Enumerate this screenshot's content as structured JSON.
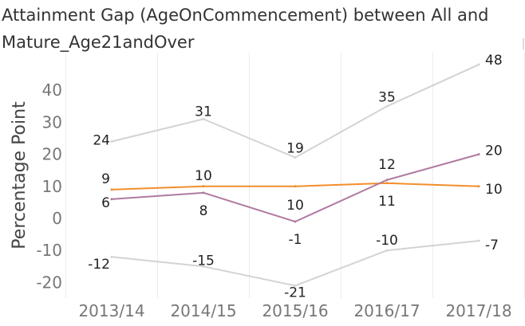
{
  "chart_data": {
    "type": "line",
    "title": "Attainment Gap (AgeOnCommencement) between  All and Mature_Age21andOver",
    "ylabel": "Percentage Point",
    "xlabel": "",
    "categories": [
      "2013/14",
      "2014/15",
      "2015/16",
      "2016/17",
      "2017/18"
    ],
    "yticks": [
      -20,
      -10,
      0,
      10,
      20,
      30,
      40
    ],
    "ylim": [
      -24,
      52
    ],
    "grid": "x",
    "legend": "none",
    "series": [
      {
        "name": "",
        "color": "#d3d3d3",
        "values": [
          24,
          31,
          19,
          35,
          48
        ]
      },
      {
        "name": "",
        "color": "#f28e2b",
        "values": [
          9,
          10,
          10,
          11,
          10
        ]
      },
      {
        "name": "",
        "color": "#b07aa1",
        "values": [
          6,
          8,
          -1,
          12,
          20
        ]
      },
      {
        "name": "",
        "color": "#d3d3d3",
        "values": [
          -12,
          -15,
          -21,
          -10,
          -7
        ]
      }
    ],
    "data_labels": [
      {
        "text": "24",
        "color": "#222222"
      },
      {
        "text": "31",
        "color": "#222222"
      },
      {
        "text": "19",
        "color": "#222222"
      },
      {
        "text": "35",
        "color": "#222222"
      },
      {
        "text": "48",
        "color": "#222222"
      },
      {
        "text": "9",
        "color": "#222222"
      },
      {
        "text": "10",
        "color": "#222222"
      },
      {
        "text": "10",
        "color": "#222222"
      },
      {
        "text": "11",
        "color": "#222222"
      },
      {
        "text": "10",
        "color": "#222222"
      },
      {
        "text": "6",
        "color": "#222222"
      },
      {
        "text": "8",
        "color": "#222222"
      },
      {
        "text": "-1",
        "color": "#222222"
      },
      {
        "text": "12",
        "color": "#222222"
      },
      {
        "text": "20",
        "color": "#222222"
      },
      {
        "text": "-12",
        "color": "#222222"
      },
      {
        "text": "-15",
        "color": "#222222"
      },
      {
        "text": "-21",
        "color": "#222222"
      },
      {
        "text": "-10",
        "color": "#222222"
      },
      {
        "text": "-7",
        "color": "#222222"
      }
    ]
  }
}
